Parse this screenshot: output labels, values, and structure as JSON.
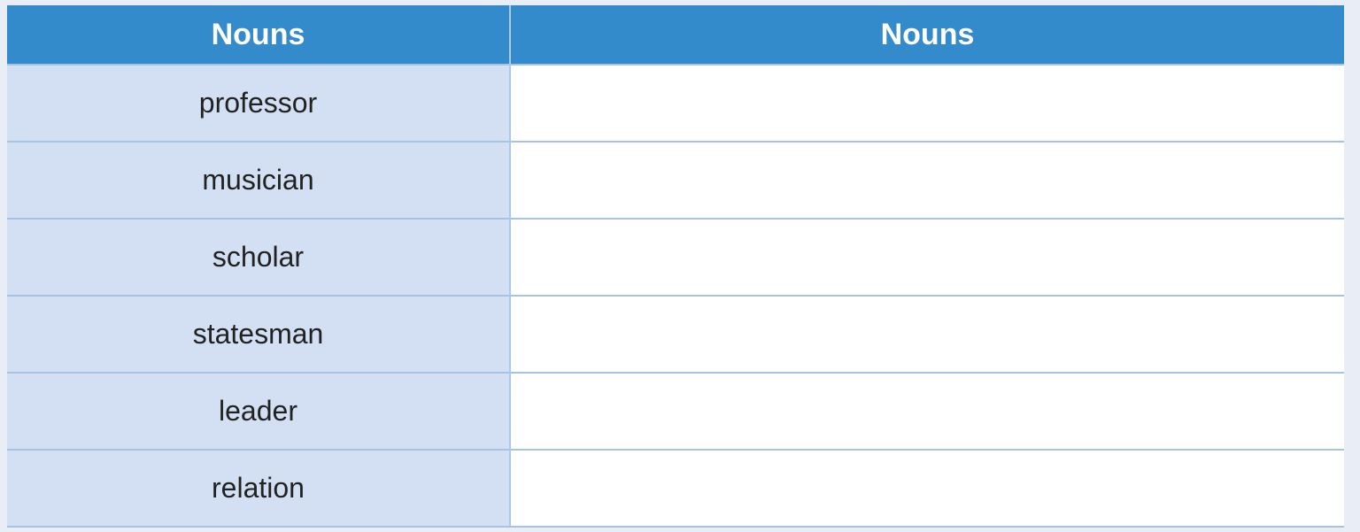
{
  "table": {
    "headers": [
      "Nouns",
      "Nouns"
    ],
    "rows": [
      {
        "noun": "professor",
        "answer": ""
      },
      {
        "noun": "musician",
        "answer": ""
      },
      {
        "noun": "scholar",
        "answer": ""
      },
      {
        "noun": "statesman",
        "answer": ""
      },
      {
        "noun": "leader",
        "answer": ""
      },
      {
        "noun": "relation",
        "answer": ""
      }
    ]
  },
  "colors": {
    "header": "#338bcc",
    "left_column": "#d3e0f3",
    "background": "#e9eef6"
  }
}
